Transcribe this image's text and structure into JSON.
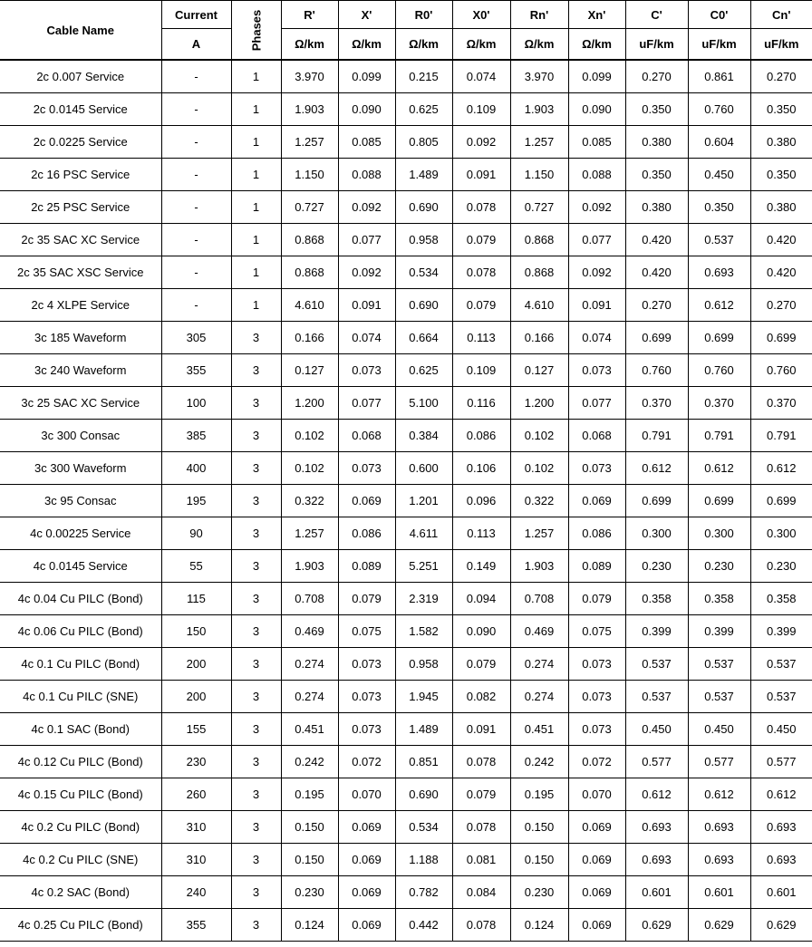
{
  "header": {
    "cable_name": "Cable Name",
    "current": "Current",
    "current_unit": "A",
    "phases": "Phases",
    "params": [
      {
        "label": "R'",
        "unit": "Ω/km"
      },
      {
        "label": "X'",
        "unit": "Ω/km"
      },
      {
        "label": "R0'",
        "unit": "Ω/km"
      },
      {
        "label": "X0'",
        "unit": "Ω/km"
      },
      {
        "label": "Rn'",
        "unit": "Ω/km"
      },
      {
        "label": "Xn'",
        "unit": "Ω/km"
      },
      {
        "label": "C'",
        "unit": "uF/km"
      },
      {
        "label": "C0'",
        "unit": "uF/km"
      },
      {
        "label": "Cn'",
        "unit": "uF/km"
      }
    ]
  },
  "rows": [
    [
      "2c 0.007 Service",
      "-",
      "1",
      "3.970",
      "0.099",
      "0.215",
      "0.074",
      "3.970",
      "0.099",
      "0.270",
      "0.861",
      "0.270"
    ],
    [
      "2c 0.0145 Service",
      "-",
      "1",
      "1.903",
      "0.090",
      "0.625",
      "0.109",
      "1.903",
      "0.090",
      "0.350",
      "0.760",
      "0.350"
    ],
    [
      "2c 0.0225 Service",
      "-",
      "1",
      "1.257",
      "0.085",
      "0.805",
      "0.092",
      "1.257",
      "0.085",
      "0.380",
      "0.604",
      "0.380"
    ],
    [
      "2c 16 PSC Service",
      "-",
      "1",
      "1.150",
      "0.088",
      "1.489",
      "0.091",
      "1.150",
      "0.088",
      "0.350",
      "0.450",
      "0.350"
    ],
    [
      "2c 25 PSC Service",
      "-",
      "1",
      "0.727",
      "0.092",
      "0.690",
      "0.078",
      "0.727",
      "0.092",
      "0.380",
      "0.350",
      "0.380"
    ],
    [
      "2c 35 SAC XC Service",
      "-",
      "1",
      "0.868",
      "0.077",
      "0.958",
      "0.079",
      "0.868",
      "0.077",
      "0.420",
      "0.537",
      "0.420"
    ],
    [
      "2c 35 SAC XSC Service",
      "-",
      "1",
      "0.868",
      "0.092",
      "0.534",
      "0.078",
      "0.868",
      "0.092",
      "0.420",
      "0.693",
      "0.420"
    ],
    [
      "2c 4 XLPE Service",
      "-",
      "1",
      "4.610",
      "0.091",
      "0.690",
      "0.079",
      "4.610",
      "0.091",
      "0.270",
      "0.612",
      "0.270"
    ],
    [
      "3c 185 Waveform",
      "305",
      "3",
      "0.166",
      "0.074",
      "0.664",
      "0.113",
      "0.166",
      "0.074",
      "0.699",
      "0.699",
      "0.699"
    ],
    [
      "3c 240 Waveform",
      "355",
      "3",
      "0.127",
      "0.073",
      "0.625",
      "0.109",
      "0.127",
      "0.073",
      "0.760",
      "0.760",
      "0.760"
    ],
    [
      "3c 25 SAC XC Service",
      "100",
      "3",
      "1.200",
      "0.077",
      "5.100",
      "0.116",
      "1.200",
      "0.077",
      "0.370",
      "0.370",
      "0.370"
    ],
    [
      "3c 300 Consac",
      "385",
      "3",
      "0.102",
      "0.068",
      "0.384",
      "0.086",
      "0.102",
      "0.068",
      "0.791",
      "0.791",
      "0.791"
    ],
    [
      "3c 300 Waveform",
      "400",
      "3",
      "0.102",
      "0.073",
      "0.600",
      "0.106",
      "0.102",
      "0.073",
      "0.612",
      "0.612",
      "0.612"
    ],
    [
      "3c 95 Consac",
      "195",
      "3",
      "0.322",
      "0.069",
      "1.201",
      "0.096",
      "0.322",
      "0.069",
      "0.699",
      "0.699",
      "0.699"
    ],
    [
      "4c 0.00225 Service",
      "90",
      "3",
      "1.257",
      "0.086",
      "4.611",
      "0.113",
      "1.257",
      "0.086",
      "0.300",
      "0.300",
      "0.300"
    ],
    [
      "4c 0.0145 Service",
      "55",
      "3",
      "1.903",
      "0.089",
      "5.251",
      "0.149",
      "1.903",
      "0.089",
      "0.230",
      "0.230",
      "0.230"
    ],
    [
      "4c 0.04 Cu PILC (Bond)",
      "115",
      "3",
      "0.708",
      "0.079",
      "2.319",
      "0.094",
      "0.708",
      "0.079",
      "0.358",
      "0.358",
      "0.358"
    ],
    [
      "4c 0.06 Cu PILC (Bond)",
      "150",
      "3",
      "0.469",
      "0.075",
      "1.582",
      "0.090",
      "0.469",
      "0.075",
      "0.399",
      "0.399",
      "0.399"
    ],
    [
      "4c 0.1 Cu PILC (Bond)",
      "200",
      "3",
      "0.274",
      "0.073",
      "0.958",
      "0.079",
      "0.274",
      "0.073",
      "0.537",
      "0.537",
      "0.537"
    ],
    [
      "4c 0.1 Cu PILC (SNE)",
      "200",
      "3",
      "0.274",
      "0.073",
      "1.945",
      "0.082",
      "0.274",
      "0.073",
      "0.537",
      "0.537",
      "0.537"
    ],
    [
      "4c 0.1 SAC (Bond)",
      "155",
      "3",
      "0.451",
      "0.073",
      "1.489",
      "0.091",
      "0.451",
      "0.073",
      "0.450",
      "0.450",
      "0.450"
    ],
    [
      "4c 0.12 Cu PILC (Bond)",
      "230",
      "3",
      "0.242",
      "0.072",
      "0.851",
      "0.078",
      "0.242",
      "0.072",
      "0.577",
      "0.577",
      "0.577"
    ],
    [
      "4c 0.15 Cu PILC (Bond)",
      "260",
      "3",
      "0.195",
      "0.070",
      "0.690",
      "0.079",
      "0.195",
      "0.070",
      "0.612",
      "0.612",
      "0.612"
    ],
    [
      "4c 0.2 Cu PILC (Bond)",
      "310",
      "3",
      "0.150",
      "0.069",
      "0.534",
      "0.078",
      "0.150",
      "0.069",
      "0.693",
      "0.693",
      "0.693"
    ],
    [
      "4c 0.2 Cu PILC (SNE)",
      "310",
      "3",
      "0.150",
      "0.069",
      "1.188",
      "0.081",
      "0.150",
      "0.069",
      "0.693",
      "0.693",
      "0.693"
    ],
    [
      "4c 0.2 SAC (Bond)",
      "240",
      "3",
      "0.230",
      "0.069",
      "0.782",
      "0.084",
      "0.230",
      "0.069",
      "0.601",
      "0.601",
      "0.601"
    ],
    [
      "4c 0.25 Cu PILC (Bond)",
      "355",
      "3",
      "0.124",
      "0.069",
      "0.442",
      "0.078",
      "0.124",
      "0.069",
      "0.629",
      "0.629",
      "0.629"
    ]
  ]
}
